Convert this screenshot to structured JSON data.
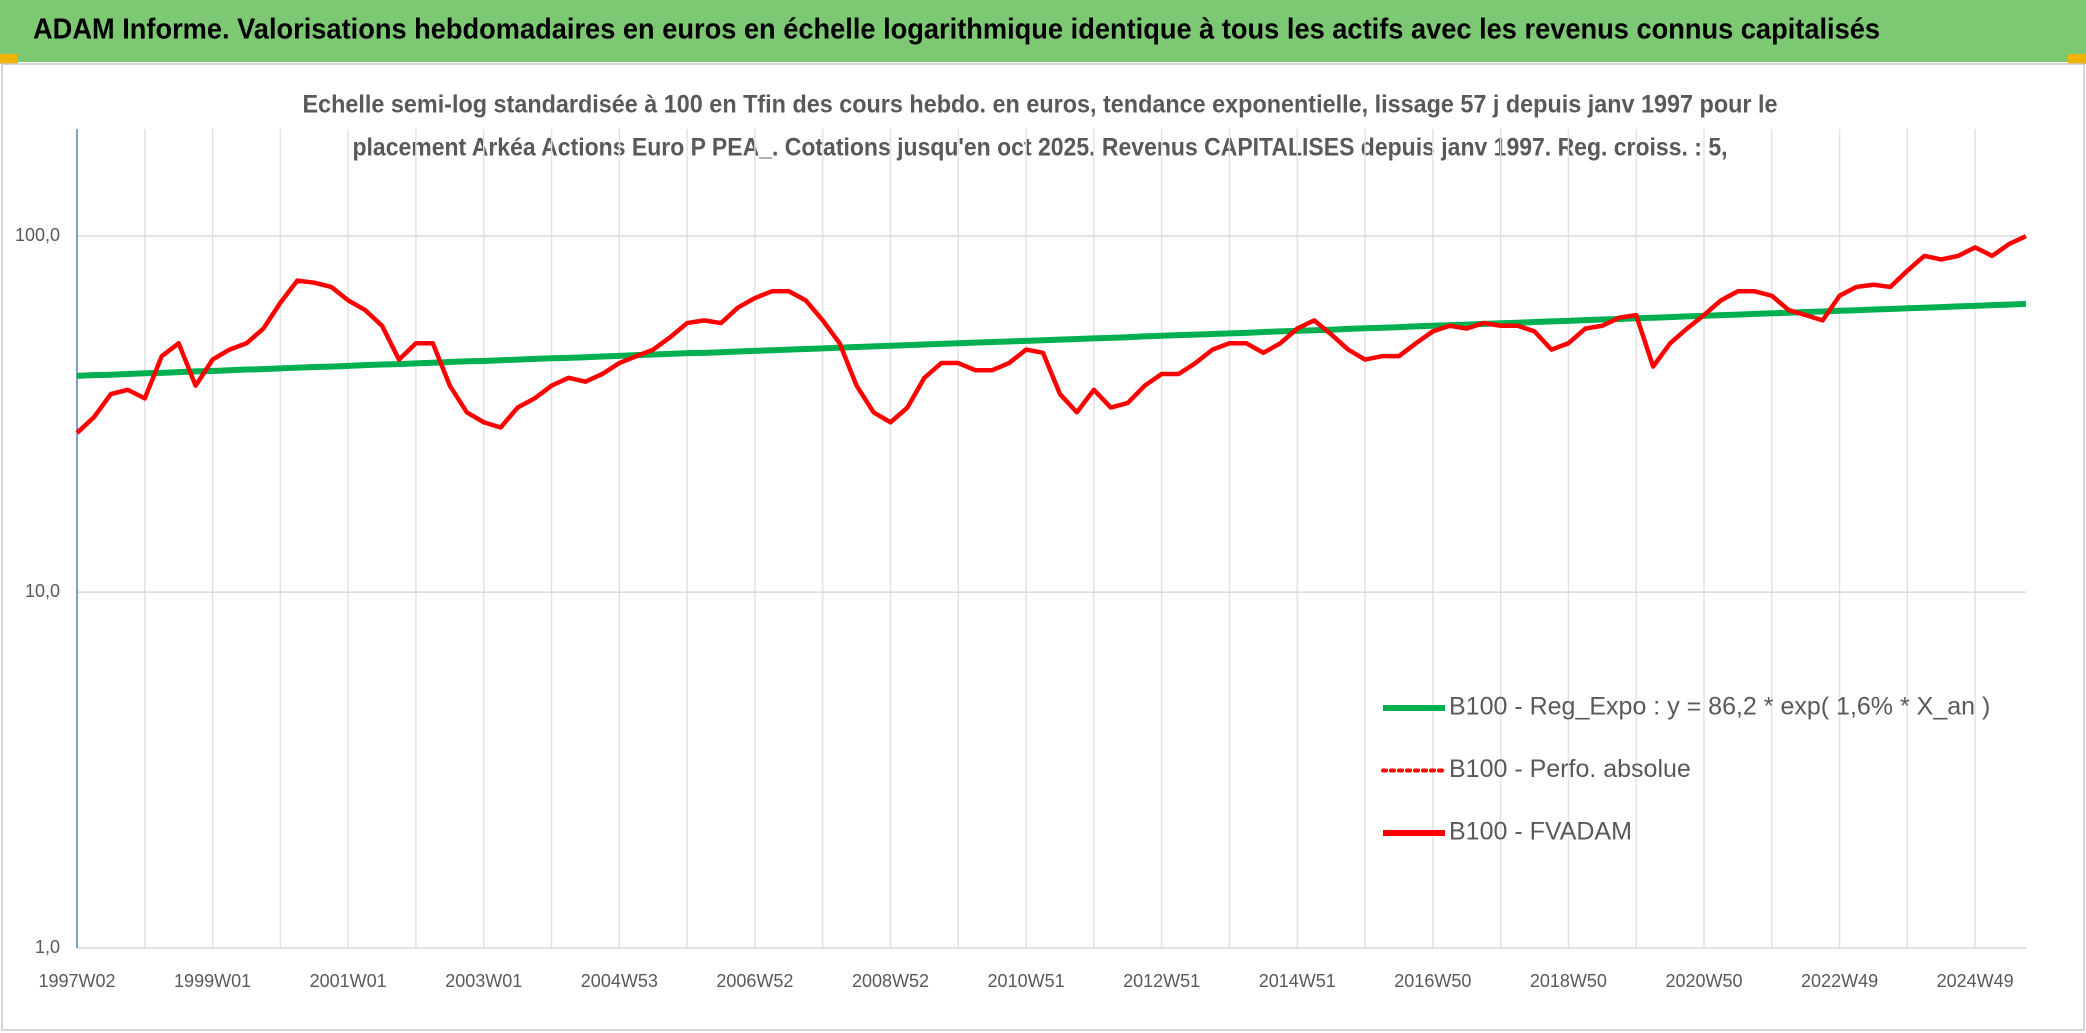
{
  "chart_data": {
    "type": "line",
    "title": "ADAM Informe. Valorisations hebdomadaires en euros en échelle logarithmique identique à tous les actifs avec les revenus connus capitalisés",
    "subtitle": [
      "Echelle semi-log standardisée à 100 en Tfin des cours hebdo. en euros, tendance exponentielle, lissage 57 j depuis janv 1997 pour le",
      "placement Arkéa Actions Euro P PEA_. Cotations jusqu'en oct 2025. Revenus CAPITALISES depuis janv 1997. Reg. croiss. : 5,"
    ],
    "categories": [
      "1997W02",
      null,
      null,
      null,
      null,
      null,
      null,
      null,
      "1999W01",
      null,
      null,
      null,
      null,
      null,
      null,
      null,
      "2001W01",
      null,
      null,
      null,
      null,
      null,
      null,
      null,
      "2003W01",
      null,
      null,
      null,
      null,
      null,
      null,
      null,
      "2004W53",
      null,
      null,
      null,
      null,
      null,
      null,
      null,
      "2006W52",
      null,
      null,
      null,
      null,
      null,
      null,
      null,
      "2008W52",
      null,
      null,
      null,
      null,
      null,
      null,
      null,
      "2010W51",
      null,
      null,
      null,
      null,
      null,
      null,
      null,
      "2012W51",
      null,
      null,
      null,
      null,
      null,
      null,
      null,
      "2014W51",
      null,
      null,
      null,
      null,
      null,
      null,
      null,
      "2016W50",
      null,
      null,
      null,
      null,
      null,
      null,
      null,
      "2018W50",
      null,
      null,
      null,
      null,
      null,
      null,
      null,
      "2020W50",
      null,
      null,
      null,
      null,
      null,
      null,
      null,
      "2022W49",
      null,
      null,
      null,
      null,
      null,
      null,
      null,
      "2024W49",
      null,
      null,
      null
    ],
    "series": [
      {
        "name": "B100 - Reg_Expo : y = 86,2 * exp( 1,6% *  X_an )",
        "color": "#00b050",
        "dash": "solid",
        "values": [
          40.5,
          40.7,
          40.8,
          41.0,
          41.2,
          41.3,
          41.5,
          41.7,
          41.8,
          42.0,
          42.2,
          42.3,
          42.5,
          42.7,
          42.9,
          43.0,
          43.2,
          43.4,
          43.6,
          43.7,
          43.9,
          44.1,
          44.3,
          44.5,
          44.6,
          44.8,
          45.0,
          45.2,
          45.4,
          45.5,
          45.7,
          45.9,
          46.1,
          46.3,
          46.5,
          46.7,
          46.9,
          47.0,
          47.2,
          47.4,
          47.6,
          47.8,
          48.0,
          48.2,
          48.4,
          48.6,
          48.8,
          49.0,
          49.2,
          49.4,
          49.6,
          49.8,
          50.0,
          50.2,
          50.4,
          50.6,
          50.8,
          51.0,
          51.2,
          51.4,
          51.6,
          51.8,
          52.0,
          52.3,
          52.5,
          52.7,
          52.9,
          53.1,
          53.3,
          53.5,
          53.8,
          54.0,
          54.2,
          54.4,
          54.6,
          54.9,
          55.1,
          55.3,
          55.5,
          55.8,
          56.0,
          56.2,
          56.4,
          56.7,
          56.9,
          57.1,
          57.4,
          57.6,
          57.8,
          58.1,
          58.3,
          58.5,
          58.8,
          59.0,
          59.2,
          59.5,
          59.7,
          60.0,
          60.2,
          60.5,
          60.7,
          60.9,
          61.2,
          61.4,
          61.7,
          61.9,
          62.2,
          62.4,
          62.7,
          62.9,
          63.2,
          63.5,
          63.7,
          64.0,
          64.2,
          64.5
        ]
      },
      {
        "name": "B100 - Perfo. absolue",
        "color": "#ff0000",
        "dash": "dotted",
        "values": [
          null,
          null,
          null,
          null,
          null,
          null,
          null,
          null,
          null,
          null,
          null,
          null,
          null,
          null,
          null,
          null,
          null,
          null,
          null,
          null,
          null,
          null,
          null,
          null,
          null,
          null,
          null,
          null,
          null,
          null,
          null,
          null,
          null,
          null,
          null,
          null,
          null,
          null,
          null,
          null,
          null,
          null,
          null,
          null,
          null,
          null,
          null,
          null,
          null,
          null,
          null,
          null,
          null,
          null,
          null,
          null,
          null,
          null,
          null,
          null,
          null,
          null,
          null,
          null,
          null,
          null,
          null,
          null,
          null,
          null,
          null,
          null,
          null,
          null,
          null,
          null,
          null,
          null,
          null,
          null,
          null,
          null,
          null,
          null,
          null,
          null,
          null,
          null,
          null,
          null,
          null,
          null,
          null,
          null,
          null,
          null,
          null,
          null,
          null,
          null,
          null,
          null,
          null,
          null,
          null,
          null,
          null,
          null,
          null,
          null,
          null,
          null,
          null,
          null,
          null,
          null
        ]
      },
      {
        "name": "B100 - FVADAM",
        "color": "#ff0000",
        "dash": "solid",
        "values": [
          28,
          31,
          36,
          37,
          35,
          46,
          50,
          38,
          45,
          48,
          50,
          55,
          65,
          75,
          74,
          72,
          66,
          62,
          56,
          45,
          50,
          50,
          38,
          32,
          30,
          29,
          33,
          35,
          38,
          40,
          39,
          41,
          44,
          46,
          48,
          52,
          57,
          58,
          57,
          63,
          67,
          70,
          70,
          66,
          58,
          50,
          38,
          32,
          30,
          33,
          40,
          44,
          44,
          42,
          42,
          44,
          48,
          47,
          36,
          32,
          37,
          33,
          34,
          38,
          41,
          41,
          44,
          48,
          50,
          50,
          47,
          50,
          55,
          58,
          53,
          48,
          45,
          46,
          46,
          50,
          54,
          56,
          55,
          57,
          56,
          56,
          54,
          48,
          50,
          55,
          56,
          59,
          60,
          43,
          50,
          55,
          60,
          66,
          70,
          70,
          68,
          62,
          60,
          58,
          68,
          72,
          73,
          72,
          80,
          88,
          86,
          88,
          93,
          88,
          95,
          100
        ]
      }
    ],
    "log_scale": true,
    "ylim": [
      1,
      200
    ],
    "yticks": [
      {
        "value": 1,
        "label": "1,0"
      },
      {
        "value": 10,
        "label": "10,0"
      },
      {
        "value": 100,
        "label": "100,0"
      }
    ],
    "grid": true,
    "legend": "lower right"
  }
}
